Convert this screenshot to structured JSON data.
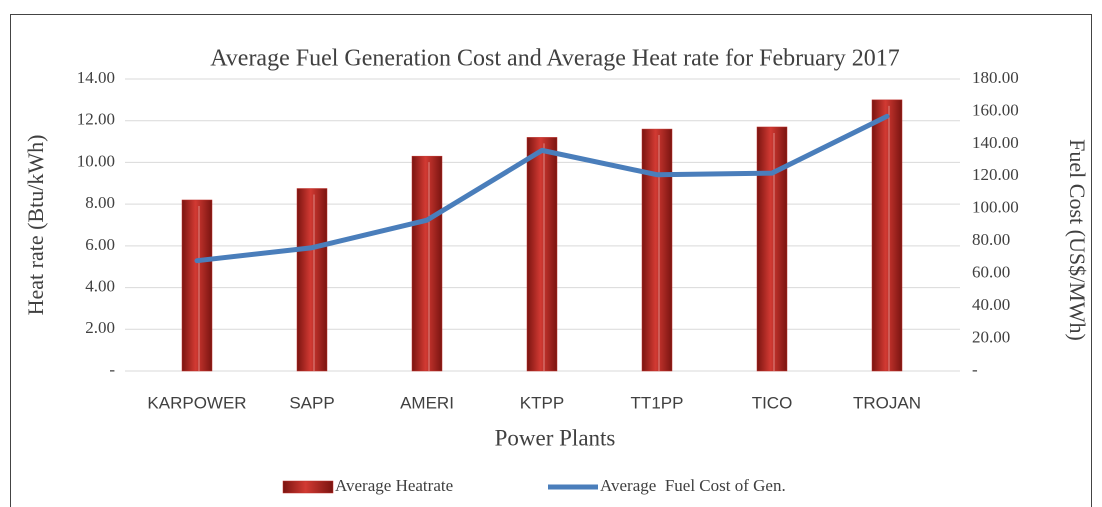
{
  "chart_data": {
    "type": "bar",
    "title": "Average Fuel Generation Cost and Average Heat rate for February 2017",
    "x_label": "Power Plants",
    "y_label": "Heat rate (Btu/kWh)",
    "y2_label": "Fuel Cost (US$/MWh)",
    "categories": [
      "KARPOWER",
      "SAPP",
      "AMERI",
      "KTPP",
      "TT1PP",
      "TICO",
      "TROJAN"
    ],
    "series": [
      {
        "name": "Average Heatrate",
        "type": "bar",
        "axis": "y",
        "color": "#c0312b",
        "values": [
          8.2,
          8.75,
          10.3,
          11.2,
          11.6,
          11.7,
          13.0
        ]
      },
      {
        "name": "Average  Fuel Cost of Gen.",
        "type": "line",
        "axis": "y2",
        "color": "#4a7ebb",
        "values": [
          68,
          76,
          93,
          136,
          121,
          122,
          157
        ]
      }
    ],
    "ylim": [
      0,
      14
    ],
    "yticks": [
      {
        "value": 0,
        "label": "-"
      },
      {
        "value": 2,
        "label": "2.00"
      },
      {
        "value": 4,
        "label": "4.00"
      },
      {
        "value": 6,
        "label": "6.00"
      },
      {
        "value": 8,
        "label": "8.00"
      },
      {
        "value": 10,
        "label": "10.00"
      },
      {
        "value": 12,
        "label": "12.00"
      },
      {
        "value": 14,
        "label": "14.00"
      }
    ],
    "y2lim": [
      0,
      180
    ],
    "y2ticks": [
      {
        "value": 0,
        "label": "-"
      },
      {
        "value": 20,
        "label": "20.00"
      },
      {
        "value": 40,
        "label": "40.00"
      },
      {
        "value": 60,
        "label": "60.00"
      },
      {
        "value": 80,
        "label": "80.00"
      },
      {
        "value": 100,
        "label": "100.00"
      },
      {
        "value": 120,
        "label": "120.00"
      },
      {
        "value": 140,
        "label": "140.00"
      },
      {
        "value": 160,
        "label": "160.00"
      },
      {
        "value": 180,
        "label": "180.00"
      }
    ],
    "grid": true,
    "legend": "bottom"
  }
}
